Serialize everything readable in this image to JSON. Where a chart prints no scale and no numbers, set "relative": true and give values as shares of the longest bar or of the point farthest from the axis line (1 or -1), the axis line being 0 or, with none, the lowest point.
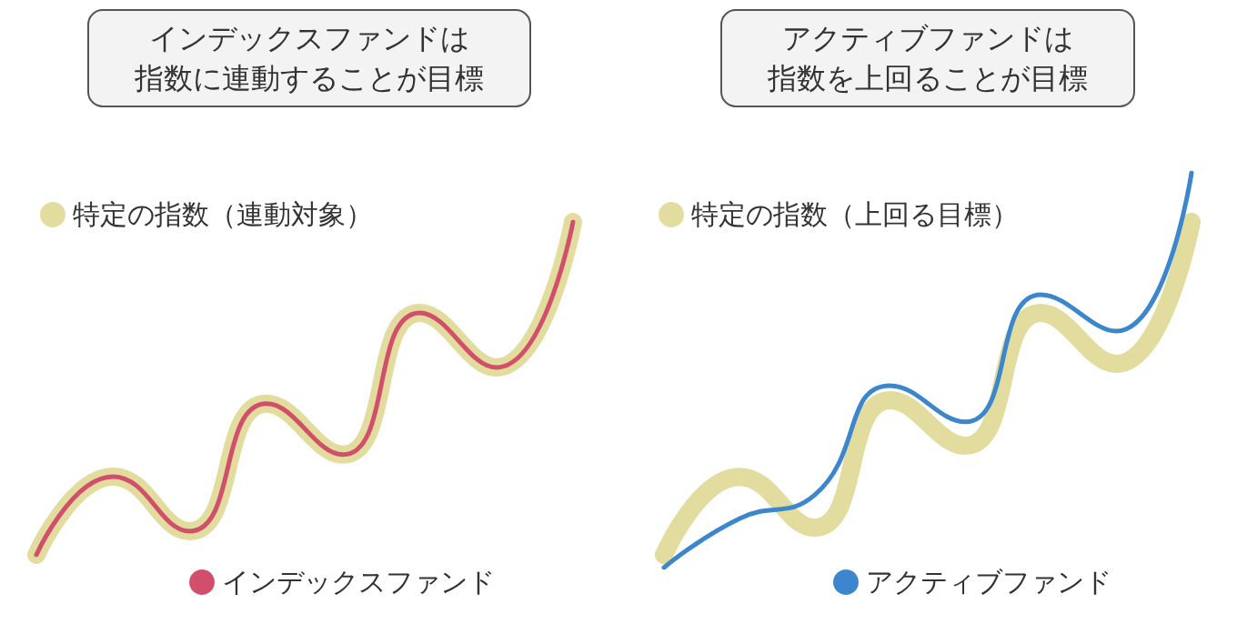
{
  "chart_data": [
    {
      "type": "line",
      "title": "インデックスファンドは",
      "subtitle": "指数に連動することが目標",
      "relative": true,
      "legend": "left",
      "categories": [
        null,
        null,
        null,
        null,
        null,
        null,
        null,
        null
      ],
      "series": [
        {
          "name": "特定の指数（連動対象）",
          "color": "#e2dc9e",
          "values": [
            0,
            0.235,
            0.071,
            0.454,
            0.301,
            0.727,
            0.563,
            1
          ]
        },
        {
          "name": "インデックスファンド",
          "color": "#d24f6c",
          "values": [
            0,
            0.235,
            0.071,
            0.454,
            0.301,
            0.727,
            0.563,
            1
          ]
        }
      ]
    },
    {
      "type": "line",
      "title": "アクティブファンドは",
      "subtitle": "指数を上回ることが目標",
      "relative": true,
      "legend": "left",
      "categories": [
        null,
        null,
        null,
        null,
        null,
        null,
        null,
        null
      ],
      "series": [
        {
          "name": "特定の指数（上回る目標）",
          "color": "#e2dc9e",
          "values": [
            0.032,
            0.23,
            0.101,
            0.424,
            0.309,
            0.645,
            0.516,
            0.876
          ]
        },
        {
          "name": "アクティブファンド",
          "color": "#3b86cc",
          "values": [
            0,
            0.124,
            0.184,
            0.461,
            0.369,
            0.691,
            0.599,
            1
          ]
        }
      ]
    }
  ]
}
